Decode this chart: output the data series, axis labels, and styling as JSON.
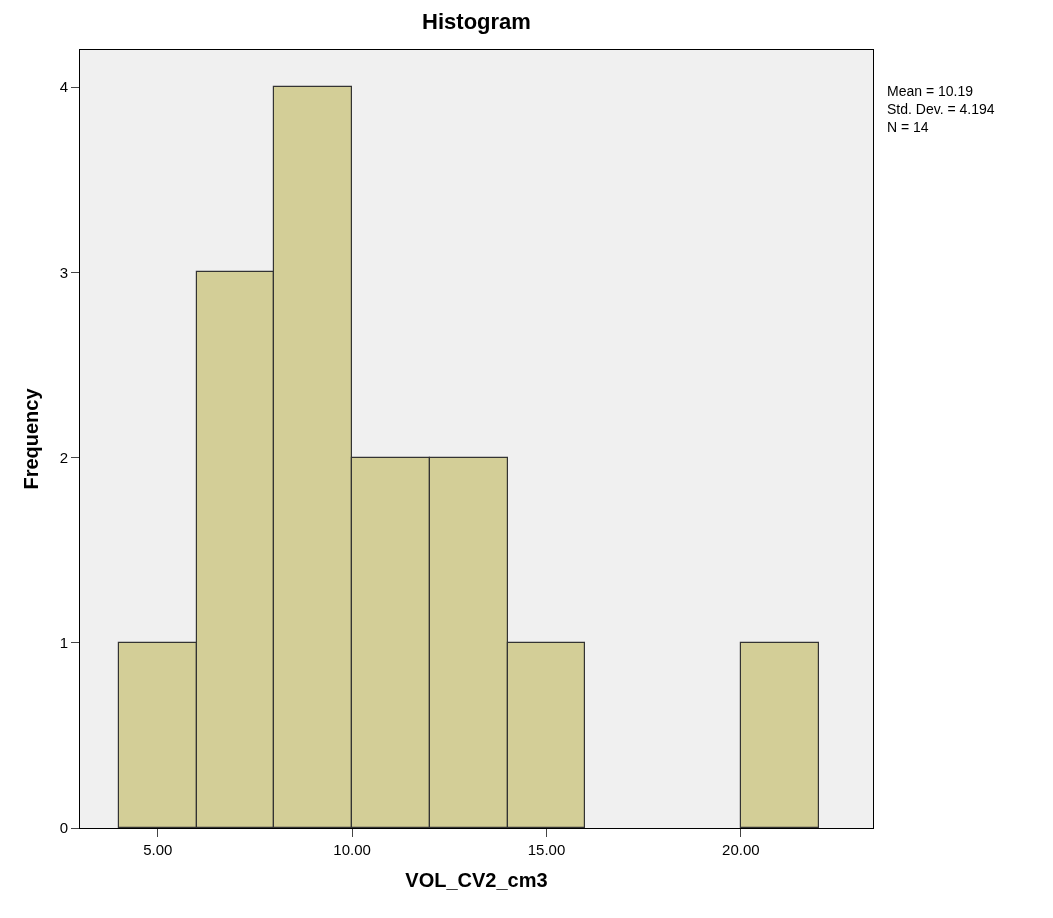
{
  "chart_data": {
    "type": "histogram",
    "title": "Histogram",
    "xlabel": "VOL_CV2_cm3",
    "ylabel": "Frequency",
    "bins": [
      4,
      6,
      8,
      10,
      12,
      14,
      16,
      18,
      20,
      22
    ],
    "values": [
      1,
      3,
      4,
      2,
      2,
      1,
      0,
      0,
      1
    ],
    "color": "#d3ce97",
    "xlim": [
      3,
      23.4
    ],
    "xticks": [
      {
        "value": 5,
        "label": "5.00"
      },
      {
        "value": 10,
        "label": "10.00"
      },
      {
        "value": 15,
        "label": "15.00"
      },
      {
        "value": 20,
        "label": "20.00"
      }
    ],
    "ylim": [
      0,
      4.2
    ],
    "yticks": [
      0,
      1,
      2,
      3,
      4
    ],
    "grid": false,
    "annotations": [
      "Mean = 10.19\nStd. Dev. = 4.194\nN = 14"
    ]
  }
}
